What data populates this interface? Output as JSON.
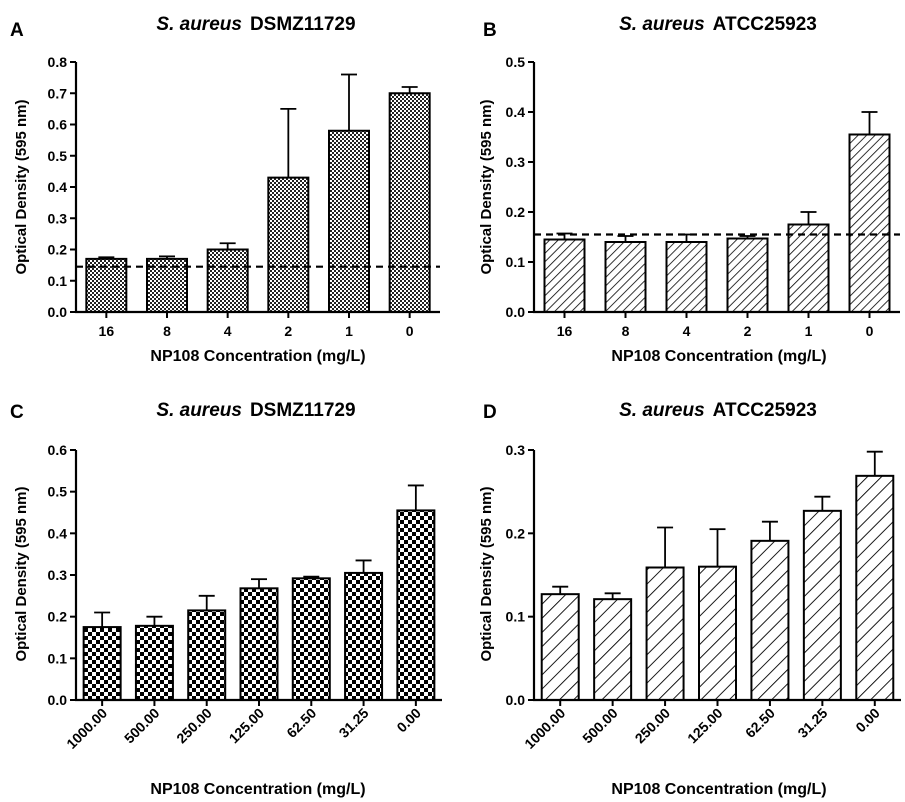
{
  "chart_data": [
    {
      "panel_letter": "A",
      "type": "bar",
      "title_italic": "S. aureus",
      "title_strain": "DSMZ11729",
      "xlabel": "NP108 Concentration (mg/L)",
      "ylabel": "Optical Density (595 nm)",
      "categories": [
        "16",
        "8",
        "4",
        "2",
        "1",
        "0"
      ],
      "values": [
        0.17,
        0.17,
        0.2,
        0.43,
        0.58,
        0.7
      ],
      "errors": [
        0.005,
        0.008,
        0.02,
        0.22,
        0.18,
        0.02
      ],
      "ylim": [
        0,
        0.8
      ],
      "yticks": [
        "0.0",
        "0.1",
        "0.2",
        "0.3",
        "0.4",
        "0.5",
        "0.6",
        "0.7",
        "0.8"
      ],
      "threshold": 0.145,
      "fill_pattern": "fine-checker",
      "tick_rotation": "none"
    },
    {
      "panel_letter": "B",
      "type": "bar",
      "title_italic": "S. aureus",
      "title_strain": "ATCC25923",
      "xlabel": "NP108 Concentration (mg/L)",
      "ylabel": "Optical Density (595 nm)",
      "categories": [
        "16",
        "8",
        "4",
        "2",
        "1",
        "0"
      ],
      "values": [
        0.145,
        0.14,
        0.14,
        0.147,
        0.175,
        0.355
      ],
      "errors": [
        0.012,
        0.012,
        0.015,
        0.005,
        0.025,
        0.045
      ],
      "ylim": [
        0,
        0.5
      ],
      "yticks": [
        "0.0",
        "0.1",
        "0.2",
        "0.3",
        "0.4",
        "0.5"
      ],
      "threshold": 0.155,
      "fill_pattern": "hatch",
      "tick_rotation": "none"
    },
    {
      "panel_letter": "C",
      "type": "bar",
      "title_italic": "S. aureus",
      "title_strain": "DSMZ11729",
      "xlabel": "NP108 Concentration (mg/L)",
      "ylabel": "Optical Density (595 nm)",
      "categories": [
        "1000.00",
        "500.00",
        "250.00",
        "125.00",
        "62.50",
        "31.25",
        "0.00"
      ],
      "values": [
        0.175,
        0.178,
        0.215,
        0.268,
        0.292,
        0.305,
        0.455
      ],
      "errors": [
        0.035,
        0.022,
        0.035,
        0.022,
        0.004,
        0.03,
        0.06
      ],
      "ylim": [
        0,
        0.6
      ],
      "yticks": [
        "0.0",
        "0.1",
        "0.2",
        "0.3",
        "0.4",
        "0.5",
        "0.6"
      ],
      "fill_pattern": "checker",
      "tick_rotation": "diagonal"
    },
    {
      "panel_letter": "D",
      "type": "bar",
      "title_italic": "S. aureus",
      "title_strain": "ATCC25923",
      "xlabel": "NP108 Concentration (mg/L)",
      "ylabel": "Optical Density (595 nm)",
      "categories": [
        "1000.00",
        "500.00",
        "250.00",
        "125.00",
        "62.50",
        "31.25",
        "0.00"
      ],
      "values": [
        0.127,
        0.121,
        0.159,
        0.16,
        0.191,
        0.227,
        0.269
      ],
      "errors": [
        0.009,
        0.007,
        0.048,
        0.045,
        0.023,
        0.017,
        0.029
      ],
      "ylim": [
        0,
        0.3
      ],
      "yticks": [
        "0.0",
        "0.1",
        "0.2",
        "0.3"
      ],
      "fill_pattern": "wide-hatch",
      "tick_rotation": "diagonal"
    }
  ]
}
